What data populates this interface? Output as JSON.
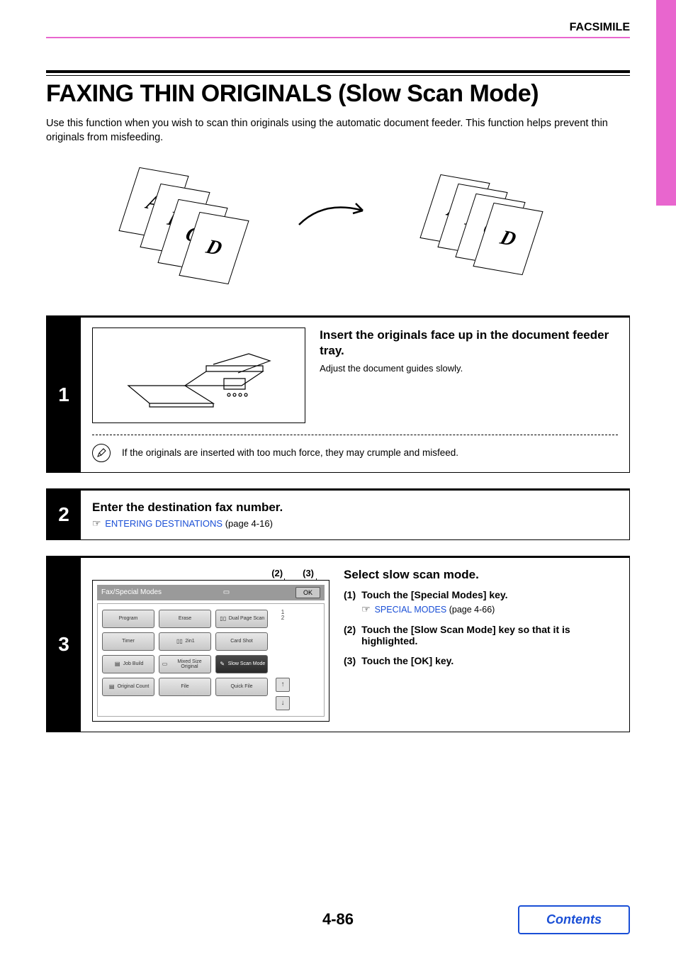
{
  "header": {
    "section": "FACSIMILE"
  },
  "title": "FAXING THIN ORIGINALS (Slow Scan Mode)",
  "intro": "Use this function when you wish to scan thin originals using the automatic document feeder. This function helps prevent thin originals from misfeeding.",
  "sheets": [
    "A",
    "B",
    "C",
    "D"
  ],
  "step1": {
    "num": "1",
    "heading": "Insert the originals face up in the document feeder tray.",
    "sub": "Adjust the document guides slowly.",
    "note": "If the originals are inserted with too much force, they may crumple and misfeed."
  },
  "step2": {
    "num": "2",
    "heading": "Enter the destination fax number.",
    "ref_link": "ENTERING DESTINATIONS",
    "ref_page": " (page 4-16)"
  },
  "step3": {
    "num": "3",
    "callouts": [
      "(2)",
      "(3)"
    ],
    "screen": {
      "title": "Fax/Special Modes",
      "ok": "OK",
      "buttons": [
        {
          "label": "Program",
          "icon": ""
        },
        {
          "label": "Erase",
          "icon": ""
        },
        {
          "label": "Dual Page Scan",
          "icon": "▯▯"
        },
        {
          "label": "Timer",
          "icon": ""
        },
        {
          "label": "2in1",
          "icon": "▯▯"
        },
        {
          "label": "Card Shot",
          "icon": ""
        },
        {
          "label": "Job Build",
          "icon": "▤"
        },
        {
          "label": "Mixed Size Original",
          "icon": "▭"
        },
        {
          "label": "Slow Scan Mode",
          "icon": "✎",
          "hl": true
        },
        {
          "label": "Original Count",
          "icon": "▤"
        },
        {
          "label": "File",
          "icon": ""
        },
        {
          "label": "Quick File",
          "icon": ""
        }
      ],
      "page_indicator_top": "1",
      "page_indicator_bot": "2",
      "up": "↑",
      "down": "↓"
    },
    "heading": "Select slow scan mode.",
    "items": [
      {
        "num": "(1)",
        "text": "Touch the [Special Modes] key.",
        "ref_link": "SPECIAL MODES",
        "ref_page": " (page 4-66)"
      },
      {
        "num": "(2)",
        "text": "Touch the [Slow Scan Mode] key so that it is highlighted."
      },
      {
        "num": "(3)",
        "text": "Touch the [OK] key."
      }
    ]
  },
  "footer": {
    "page": "4-86",
    "contents": "Contents"
  },
  "colors": {
    "accent": "#e866ce",
    "link": "#1a4fd6"
  }
}
